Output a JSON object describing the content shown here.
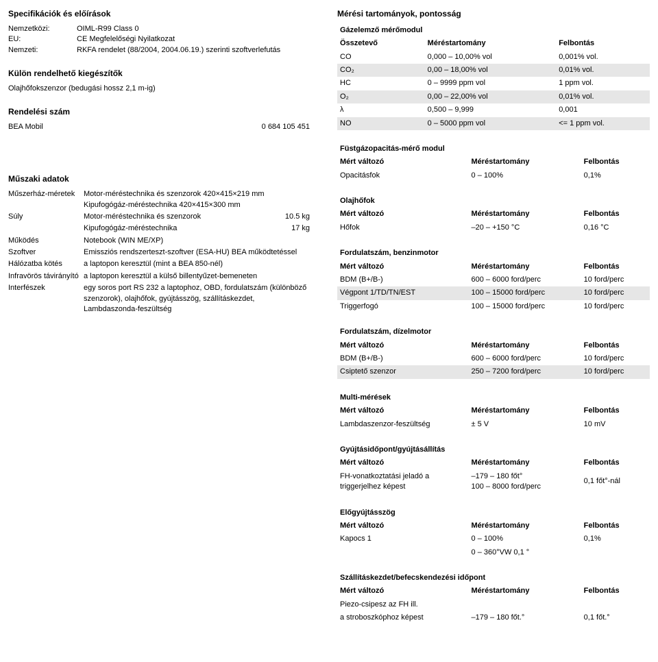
{
  "left": {
    "specs_title": "Specifikációk és előírások",
    "specs": [
      {
        "lbl": "Nemzetközi:",
        "val": "OIML-R99 Class 0"
      },
      {
        "lbl": "EU:",
        "val": "CE Megfelelőségi Nyilatkozat"
      },
      {
        "lbl": "Nemzeti:",
        "val": "RKFA rendelet (88/2004, 2004.06.19.) szerinti szoftverlefutás"
      }
    ],
    "acc_title": "Külön rendelhető kiegészítők",
    "acc_line": "Olajhőfokszenzor (bedugási hossz 2,1 m-ig)",
    "order_title": "Rendelési szám",
    "order_label": "BEA Mobil",
    "order_no": "0 684 105 451",
    "tech_title": "Műszaki adatok",
    "tech": [
      {
        "lbl": "Műszerház-méretek",
        "val": "Motor-méréstechnika és szenzorok 420×415×219 mm\nKipufogógáz-méréstechnika 420×415×300 mm",
        "wgt": ""
      },
      {
        "lbl": "Súly",
        "val": "Motor-méréstechnika és szenzorok",
        "wgt": "10.5 kg"
      },
      {
        "lbl": "",
        "val": "Kipufogógáz-méréstechnika",
        "wgt": "17 kg"
      },
      {
        "lbl": "Működés",
        "val": "Notebook (WIN ME/XP)",
        "wgt": ""
      },
      {
        "lbl": "Szoftver",
        "val": "Emissziós rendszerteszt-szoftver (ESA-HU) BEA működtetéssel",
        "wgt": ""
      },
      {
        "lbl": "Hálózatba kötés",
        "val": "a laptopon keresztül (mint a BEA 850-nél)",
        "wgt": ""
      },
      {
        "lbl": "Infravörös távirányító",
        "val": "a laptopon keresztül a külső billentyűzet-bemeneten",
        "wgt": ""
      },
      {
        "lbl": "Interfészek",
        "val": "egy soros port RS 232 a laptophoz, OBD, fordulatszám (különböző szenzorok), olajhőfok, gyújtásszög, szállításkezdet, Lambdaszonda-feszültség",
        "wgt": ""
      }
    ]
  },
  "right": {
    "main_title": "Mérési tartományok, pontosság",
    "blocks": [
      {
        "title": "Gázelemző mérőmodul",
        "header": [
          "Összetevő",
          "Méréstartomány",
          "Felbontás"
        ],
        "cls": "gas",
        "rows": [
          {
            "c": [
              "CO",
              "0,000 – 10,00% vol",
              "0,001% vol."
            ],
            "shade": false
          },
          {
            "c": [
              "CO₂",
              "0,00 – 18,00% vol",
              "0,01% vol."
            ],
            "shade": true
          },
          {
            "c": [
              "HC",
              "0 – 9999 ppm vol",
              "1 ppm vol."
            ],
            "shade": false
          },
          {
            "c": [
              "O₂",
              "0,00 – 22,00% vol",
              "0,01% vol."
            ],
            "shade": true
          },
          {
            "c": [
              "λ",
              "0,500 – 9,999",
              "0,001"
            ],
            "shade": false
          },
          {
            "c": [
              "NO",
              "0 – 5000 ppm vol",
              "<= 1 ppm vol."
            ],
            "shade": true
          }
        ]
      },
      {
        "title": "Füstgázopacitás-mérő modul",
        "header": [
          "Mért változó",
          "Méréstartomány",
          "Felbontás"
        ],
        "rows": [
          {
            "c": [
              "Opacitásfok",
              "0 – 100%",
              "0,1%"
            ],
            "shade": false
          }
        ]
      },
      {
        "title": "Olajhőfok",
        "header": [
          "Mért változó",
          "Méréstartomány",
          "Felbontás"
        ],
        "rows": [
          {
            "c": [
              "Hőfok",
              "–20 – +150 °C",
              "0,16 °C"
            ],
            "shade": false
          }
        ]
      },
      {
        "title": "Fordulatszám, benzinmotor",
        "header": [
          "Mért változó",
          "Méréstartomány",
          "Felbontás"
        ],
        "rows": [
          {
            "c": [
              "BDM (B+/B-)",
              "600 – 6000 ford/perc",
              "10 ford/perc"
            ],
            "shade": false
          },
          {
            "c": [
              "Végpont 1/TD/TN/EST",
              "100 – 15000 ford/perc",
              "10 ford/perc"
            ],
            "shade": true
          },
          {
            "c": [
              "Triggerfogó",
              "100 – 15000 ford/perc",
              "10 ford/perc"
            ],
            "shade": false
          }
        ]
      },
      {
        "title": "Fordulatszám, dízelmotor",
        "header": [
          "Mért változó",
          "Méréstartomány",
          "Felbontás"
        ],
        "rows": [
          {
            "c": [
              "BDM (B+/B-)",
              "600 – 6000 ford/perc",
              "10 ford/perc"
            ],
            "shade": false
          },
          {
            "c": [
              "Csiptető szenzor",
              "250 – 7200 ford/perc",
              "10 ford/perc"
            ],
            "shade": true
          }
        ]
      },
      {
        "title": "Multi-mérések",
        "header": [
          "Mért változó",
          "Méréstartomány",
          "Felbontás"
        ],
        "rows": [
          {
            "c": [
              "Lambdaszenzor-feszültség",
              "± 5 V",
              "10 mV"
            ],
            "shade": false
          }
        ]
      },
      {
        "title": "Gyújtásidőpont/gyújtásállítás",
        "header": [
          "Mért változó",
          "Méréstartomány",
          "Felbontás"
        ],
        "rows": [
          {
            "c": [
              "FH-vonatkoztatási jeladó a triggerjelhez képest",
              "–179 – 180 főt°\n100 – 8000 ford/perc",
              "0,1 főt°-nál"
            ],
            "shade": false
          }
        ]
      },
      {
        "title": "Előgyújtásszög",
        "header": [
          "Mért változó",
          "Méréstartomány",
          "Felbontás"
        ],
        "rows": [
          {
            "c": [
              "Kapocs 1",
              "0 – 100%",
              "0,1%"
            ],
            "shade": false
          },
          {
            "c": [
              "",
              "0 – 360°VW 0,1 °",
              ""
            ],
            "shade": false
          }
        ]
      },
      {
        "title": "Szállításkezdet/befecskendezési időpont",
        "header": [
          "Mért változó",
          "Méréstartomány",
          "Felbontás"
        ],
        "rows": [
          {
            "c": [
              "Piezo-csipesz az FH ill.",
              "",
              ""
            ],
            "shade": false
          },
          {
            "c": [
              "a stroboszkóphoz képest",
              "–179 – 180 főt.°",
              "0,1 főt.°"
            ],
            "shade": false
          }
        ]
      }
    ]
  },
  "style": {
    "shade_color": "#e6e6e6",
    "font_size": 11,
    "header_bold": true
  }
}
